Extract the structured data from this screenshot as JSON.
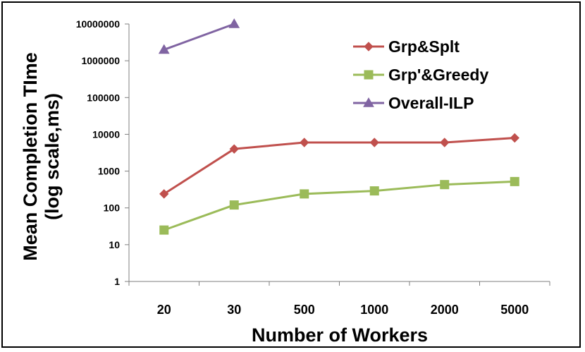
{
  "chart_data": {
    "type": "line",
    "categories": [
      "20",
      "30",
      "500",
      "1000",
      "2000",
      "5000"
    ],
    "series": [
      {
        "name": "Grp&Splt",
        "color": "#c0504d",
        "marker": "diamond",
        "values": [
          240,
          4000,
          6000,
          6000,
          6000,
          8000
        ]
      },
      {
        "name": "Grp'&Greedy",
        "color": "#9bbb59",
        "marker": "square",
        "values": [
          25,
          120,
          240,
          290,
          430,
          520
        ]
      },
      {
        "name": "Overall-ILP",
        "color": "#8064a2",
        "marker": "triangle",
        "values": [
          2000000,
          10000000,
          null,
          null,
          null,
          null
        ]
      }
    ],
    "y_scale": "log",
    "ylim": [
      1,
      10000000
    ],
    "y_ticks": [
      "1",
      "10",
      "100",
      "1000",
      "10000",
      "100000",
      "1000000",
      "10000000"
    ],
    "xlabel": "Number of Workers",
    "ylabel_line1": "Mean Completion TIme",
    "ylabel_line2": "(log scale,ms)",
    "legend_position": "top-right",
    "grid": false
  }
}
